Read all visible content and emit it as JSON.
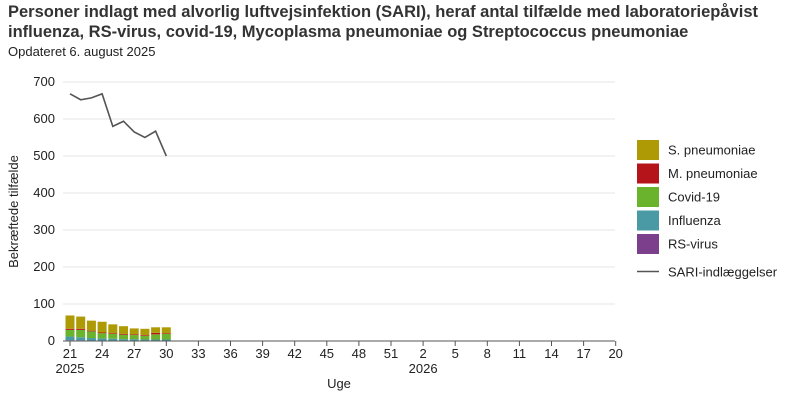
{
  "title": "Personer indlagt med alvorlig luftvejsinfektion (SARI), heraf antal tilfælde med laboratoriepåvist influenza, RS-virus, covid-19, Mycoplasma pneumoniae og Streptococcus pneumoniae",
  "subtitle": "Opdateret 6. august 2025",
  "chart_data": {
    "type": "bar",
    "xlabel": "Uge",
    "ylabel": "Bekræftede tilfælde",
    "ylim": [
      0,
      700
    ],
    "yticks": [
      0,
      100,
      200,
      300,
      400,
      500,
      600,
      700
    ],
    "grid": true,
    "legend_position": "right",
    "weeks": [
      21,
      22,
      23,
      24,
      25,
      26,
      27,
      28,
      29,
      30
    ],
    "xtick_labels": [
      "21",
      "24",
      "27",
      "30",
      "33",
      "36",
      "39",
      "42",
      "45",
      "48",
      "51",
      "2",
      "5",
      "8",
      "11",
      "14",
      "17",
      "20"
    ],
    "year_labels": [
      "2025",
      "2026"
    ],
    "stacked_series": [
      {
        "name": "RS-virus",
        "color": "#7b3f8c",
        "values": [
          2,
          2,
          1,
          1,
          1,
          1,
          1,
          1,
          1,
          1
        ]
      },
      {
        "name": "Influenza",
        "color": "#4a9aa5",
        "values": [
          10,
          8,
          7,
          6,
          5,
          4,
          4,
          3,
          3,
          3
        ]
      },
      {
        "name": "Covid-19",
        "color": "#6ab42d",
        "values": [
          18,
          20,
          18,
          14,
          13,
          12,
          11,
          10,
          14,
          15
        ]
      },
      {
        "name": "M. pneumoniae",
        "color": "#b5141b",
        "values": [
          3,
          3,
          2,
          2,
          2,
          2,
          2,
          2,
          4,
          2
        ]
      },
      {
        "name": "S. pneumoniae",
        "color": "#ad9a04",
        "values": [
          36,
          33,
          27,
          29,
          24,
          21,
          16,
          17,
          15,
          16
        ]
      }
    ],
    "line_series": {
      "name": "SARI-indlæggelser",
      "color": "#555555",
      "values": [
        668,
        652,
        657,
        668,
        580,
        594,
        565,
        550,
        567,
        500
      ]
    }
  }
}
